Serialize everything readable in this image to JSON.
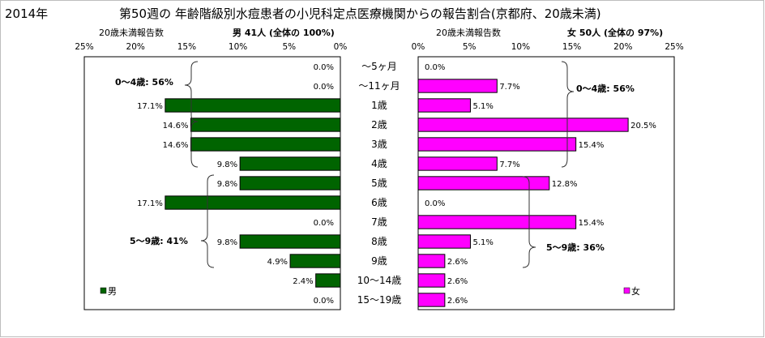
{
  "header": {
    "year": "2014年",
    "title": "第50週の 年齢階級別水痘患者の小児科定点医療機関からの報告割合(京都府、20歳未満)"
  },
  "male_panel": {
    "axis_caption": "20歳未満報告数",
    "summary": "男 41人 (全体の 100%)",
    "legend_label": "男",
    "bracket_label_0_4": "0〜4歳: 56%",
    "bracket_label_5_9": "5〜9歳: 41%",
    "color": "#006400"
  },
  "female_panel": {
    "axis_caption": "20歳未満報告数",
    "summary": "女 50人 (全体の 97%)",
    "legend_label": "女",
    "bracket_label_0_4": "0〜4歳: 56%",
    "bracket_label_5_9": "5〜9歳: 36%",
    "color": "#FF00FF"
  },
  "chart_data": {
    "type": "bar",
    "orientation": "horizontal",
    "layout": "back-to-back (population pyramid style)",
    "xlim": [
      0,
      25
    ],
    "x_ticks": [
      "0%",
      "5%",
      "10%",
      "15%",
      "20%",
      "25%"
    ],
    "categories": [
      "〜5ヶ月",
      "〜11ヶ月",
      "1歳",
      "2歳",
      "3歳",
      "4歳",
      "5歳",
      "6歳",
      "7歳",
      "8歳",
      "9歳",
      "10〜14歳",
      "15〜19歳"
    ],
    "series": [
      {
        "name": "男",
        "values": [
          0.0,
          0.0,
          17.1,
          14.6,
          14.6,
          9.8,
          9.8,
          17.1,
          0.0,
          9.8,
          4.9,
          2.4,
          0.0
        ],
        "labels": [
          "0.0%",
          "0.0%",
          "17.1%",
          "14.6%",
          "14.6%",
          "9.8%",
          "9.8%",
          "17.1%",
          "0.0%",
          "9.8%",
          "4.9%",
          "2.4%",
          "0.0%"
        ]
      },
      {
        "name": "女",
        "values": [
          0.0,
          7.7,
          5.1,
          20.5,
          15.4,
          7.7,
          12.8,
          0.0,
          15.4,
          5.1,
          2.6,
          2.6,
          2.6
        ],
        "labels": [
          "0.0%",
          "7.7%",
          "5.1%",
          "20.5%",
          "15.4%",
          "7.7%",
          "12.8%",
          "0.0%",
          "15.4%",
          "5.1%",
          "2.6%",
          "2.6%",
          "2.6%"
        ]
      }
    ]
  }
}
